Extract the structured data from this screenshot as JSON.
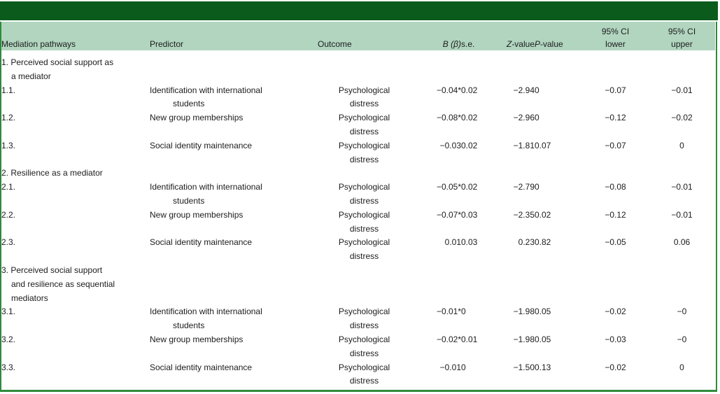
{
  "table": {
    "colors": {
      "title_band": "#0b5c1c",
      "header_row_bg": "#b1d5bf",
      "frame_border": "#2e8b3c",
      "text": "#1c1c1c"
    },
    "columns": {
      "pathway": "Mediation pathways",
      "predictor": "Predictor",
      "outcome": "Outcome",
      "b_italic": "B",
      "b_symbol": "(β)",
      "se": "s.e.",
      "z_italic": "Z",
      "z_rest": "-value",
      "p_italic": "P",
      "p_rest": "-value",
      "ci_lower_lines": [
        "95% CI",
        "lower"
      ],
      "ci_upper_lines": [
        "95% CI",
        "upper"
      ]
    },
    "sections": [
      {
        "title_lines": [
          "1. Perceived social support as",
          "a mediator"
        ],
        "rows": [
          {
            "id": "1.1.",
            "predictor_lines": [
              "Identification with international",
              "students"
            ],
            "outcome_lines": [
              "Psychological",
              "distress"
            ],
            "b": "−0.04*",
            "se": "0.02",
            "z": "−2.94",
            "p": "0",
            "ci_lower": "−0.07",
            "ci_upper": "−0.01"
          },
          {
            "id": "1.2.",
            "predictor_lines": [
              "New group memberships"
            ],
            "outcome_lines": [
              "Psychological",
              "distress"
            ],
            "b": "−0.08*",
            "se": "0.02",
            "z": "−2.96",
            "p": "0",
            "ci_lower": "−0.12",
            "ci_upper": "−0.02"
          },
          {
            "id": "1.3.",
            "predictor_lines": [
              "Social identity maintenance"
            ],
            "outcome_lines": [
              "Psychological",
              "distress"
            ],
            "b": "−0.03",
            "se": "0.02",
            "z": "−1.81",
            "p": "0.07",
            "ci_lower": "−0.07",
            "ci_upper": "0"
          }
        ]
      },
      {
        "title_lines": [
          "2. Resilience as a mediator"
        ],
        "rows": [
          {
            "id": "2.1.",
            "predictor_lines": [
              "Identification with international",
              "students"
            ],
            "outcome_lines": [
              "Psychological",
              "distress"
            ],
            "b": "−0.05*",
            "se": "0.02",
            "z": "−2.79",
            "p": "0",
            "ci_lower": "−0.08",
            "ci_upper": "−0.01"
          },
          {
            "id": "2.2.",
            "predictor_lines": [
              "New group memberships"
            ],
            "outcome_lines": [
              "Psychological",
              "distress"
            ],
            "b": "−0.07*",
            "se": "0.03",
            "z": "−2.35",
            "p": "0.02",
            "ci_lower": "−0.12",
            "ci_upper": "−0.01"
          },
          {
            "id": "2.3.",
            "predictor_lines": [
              "Social identity maintenance"
            ],
            "outcome_lines": [
              "Psychological",
              "distress"
            ],
            "b": "0.01",
            "se": "0.03",
            "z": "0.23",
            "p": "0.82",
            "ci_lower": "−0.05",
            "ci_upper": "0.06"
          }
        ]
      },
      {
        "title_lines": [
          "3. Perceived social support",
          "and resilience as sequential",
          "mediators"
        ],
        "rows": [
          {
            "id": "3.1.",
            "predictor_lines": [
              "Identification with international",
              "students"
            ],
            "outcome_lines": [
              "Psychological",
              "distress"
            ],
            "b": "−0.01*",
            "se": "0",
            "z": "−1.98",
            "p": "0.05",
            "ci_lower": "−0.02",
            "ci_upper": "−0"
          },
          {
            "id": "3.2.",
            "predictor_lines": [
              "New group memberships"
            ],
            "outcome_lines": [
              "Psychological",
              "distress"
            ],
            "b": "−0.02*",
            "se": "0.01",
            "z": "−1.98",
            "p": "0.05",
            "ci_lower": "−0.03",
            "ci_upper": "−0"
          },
          {
            "id": "3.3.",
            "predictor_lines": [
              "Social identity maintenance"
            ],
            "outcome_lines": [
              "Psychological",
              "distress"
            ],
            "b": "−0.01",
            "se": "0",
            "z": "−1.50",
            "p": "0.13",
            "ci_lower": "−0.02",
            "ci_upper": "0"
          }
        ]
      }
    ]
  }
}
